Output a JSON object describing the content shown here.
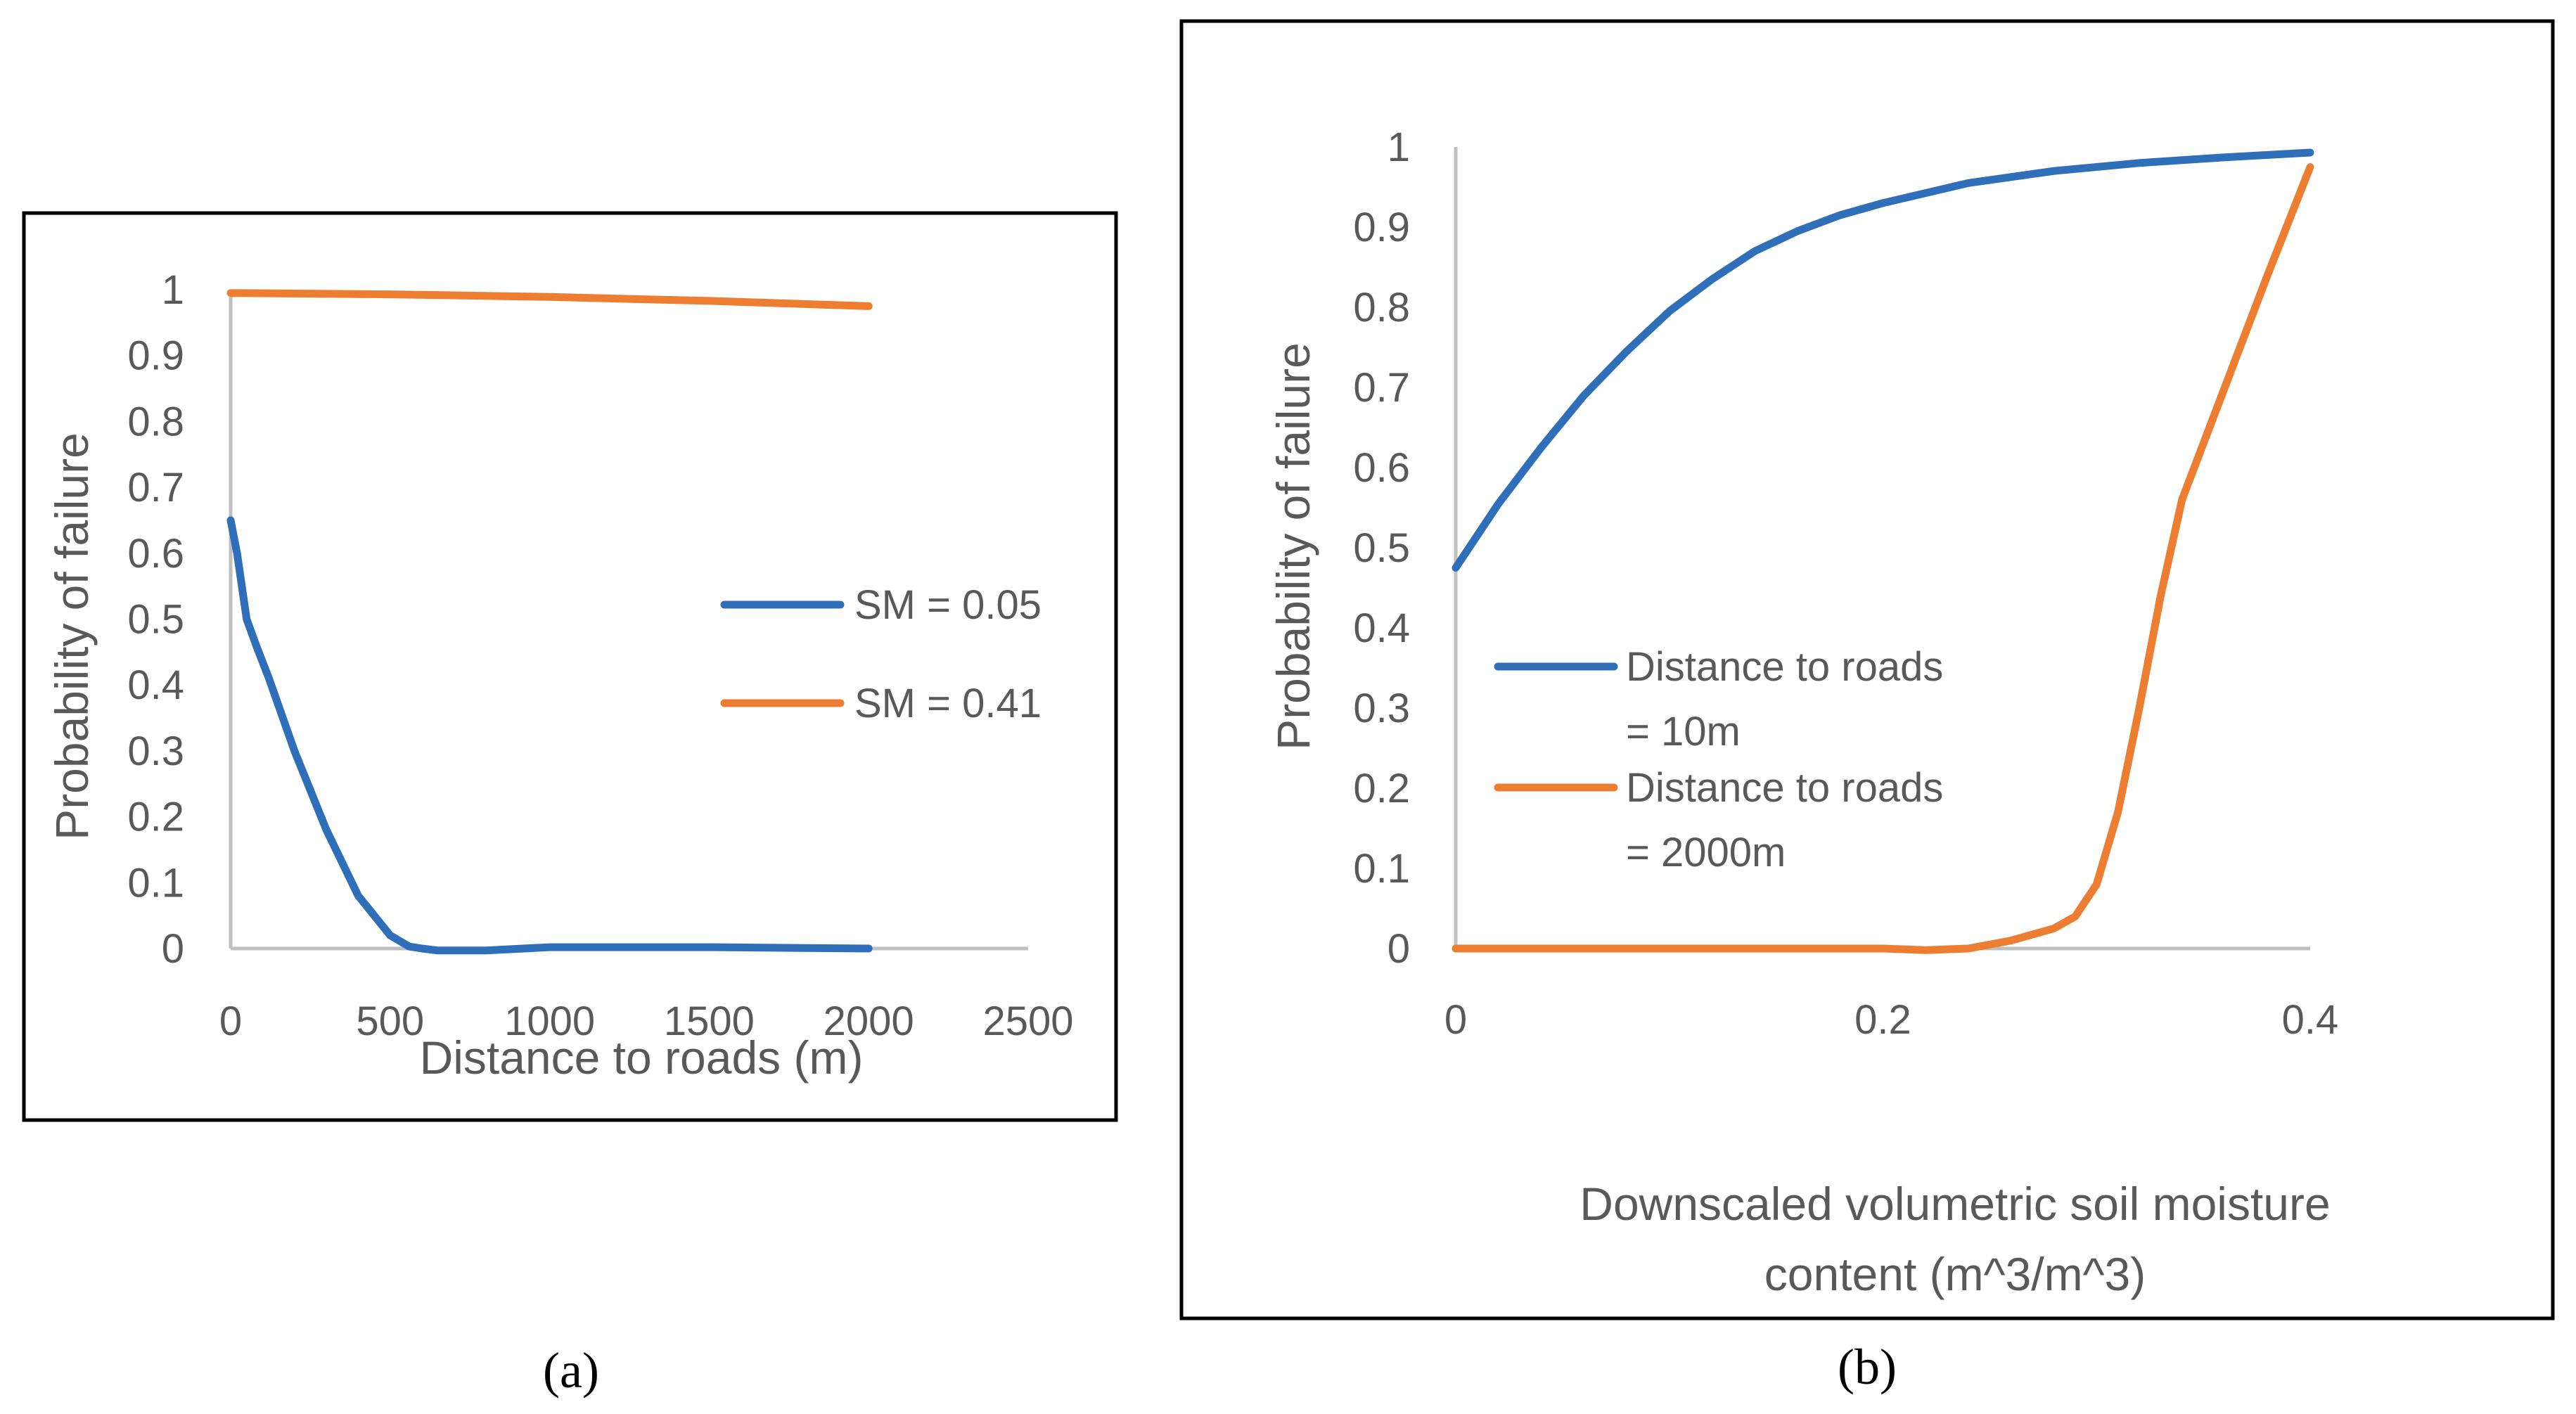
{
  "chart_data": [
    {
      "type": "line",
      "panel_label": "(a)",
      "xlabel": "Distance to roads (m)",
      "ylabel": "Probability of failure",
      "xlim": [
        0,
        2500
      ],
      "ylim": [
        0,
        1
      ],
      "xticks": [
        "0",
        "500",
        "1000",
        "1500",
        "2000",
        "2500"
      ],
      "yticks": [
        "0",
        "0.1",
        "0.2",
        "0.3",
        "0.4",
        "0.5",
        "0.6",
        "0.7",
        "0.8",
        "0.9",
        "1"
      ],
      "grid": false,
      "legend_position": "right",
      "series": [
        {
          "name": "SM = 0.05",
          "color": "#2f6fba",
          "x": [
            0,
            20,
            50,
            80,
            120,
            200,
            300,
            400,
            500,
            560,
            600,
            650,
            700,
            800,
            1000,
            1500,
            2000
          ],
          "y": [
            0.65,
            0.6,
            0.5,
            0.46,
            0.41,
            0.3,
            0.18,
            0.08,
            0.02,
            0.003,
            0,
            -0.003,
            -0.003,
            -0.003,
            0.002,
            0.002,
            0.0
          ]
        },
        {
          "name": "SM = 0.41",
          "color": "#ed7d31",
          "x": [
            0,
            500,
            1000,
            1500,
            2000
          ],
          "y": [
            0.995,
            0.993,
            0.989,
            0.983,
            0.975
          ]
        }
      ]
    },
    {
      "type": "line",
      "panel_label": "(b)",
      "xlabel": "Downscaled volumetric soil moisture content (m^3/m^3)",
      "xlabel_lines": [
        "Downscaled volumetric soil moisture",
        "content (m^3/m^3)"
      ],
      "ylabel": "Probability of failure",
      "xlim": [
        0,
        0.4
      ],
      "ylim": [
        0,
        1
      ],
      "xticks": [
        "0",
        "0.2",
        "0.4"
      ],
      "yticks": [
        "0",
        "0.1",
        "0.2",
        "0.3",
        "0.4",
        "0.5",
        "0.6",
        "0.7",
        "0.8",
        "0.9",
        "1"
      ],
      "grid": false,
      "legend_position": "left",
      "series": [
        {
          "name": "Distance to roads = 10m",
          "name_lines": [
            "Distance to roads",
            "= 10m"
          ],
          "color": "#2f6fba",
          "x": [
            0,
            0.02,
            0.04,
            0.06,
            0.08,
            0.1,
            0.12,
            0.14,
            0.16,
            0.18,
            0.2,
            0.24,
            0.28,
            0.32,
            0.36,
            0.4
          ],
          "y": [
            0.475,
            0.555,
            0.625,
            0.69,
            0.745,
            0.795,
            0.835,
            0.87,
            0.895,
            0.915,
            0.93,
            0.955,
            0.97,
            0.98,
            0.987,
            0.993
          ]
        },
        {
          "name": "Distance to roads = 2000m",
          "name_lines": [
            "Distance to roads",
            "= 2000m"
          ],
          "color": "#ed7d31",
          "x": [
            0,
            0.05,
            0.1,
            0.15,
            0.2,
            0.22,
            0.24,
            0.26,
            0.28,
            0.29,
            0.3,
            0.31,
            0.32,
            0.33,
            0.34,
            0.36,
            0.38,
            0.4
          ],
          "y": [
            0,
            0,
            0,
            0,
            0,
            -0.002,
            0,
            0.01,
            0.025,
            0.04,
            0.08,
            0.17,
            0.3,
            0.44,
            0.56,
            0.7,
            0.84,
            0.975
          ]
        }
      ]
    }
  ]
}
